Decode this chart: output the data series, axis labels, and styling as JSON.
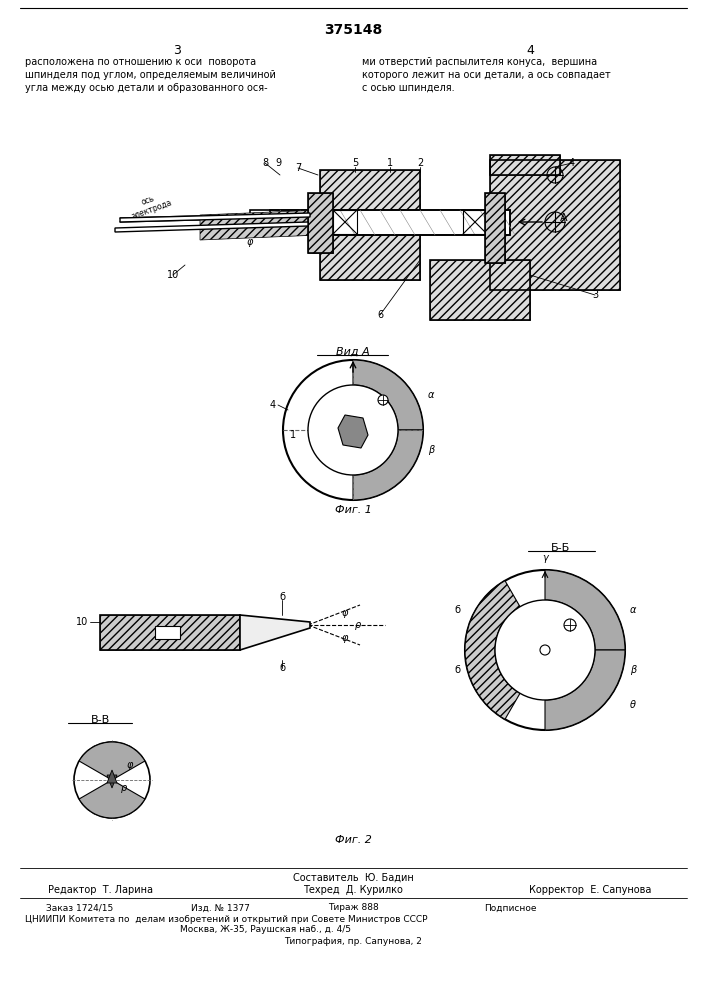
{
  "patent_number": "375148",
  "page_left": "3",
  "page_right": "4",
  "text_left": "расположена по отношению к оси  поворота\nшпинделя под углом, определяемым величиной\nугла между осью детали и образованного ося-",
  "text_right": "ми отверстий распылителя конуса,  вершина\nкоторого лежит на оси детали, а ось совпадает\nс осью шпинделя.",
  "fig1_label": "Фиг. 1",
  "fig2_label": "Фиг. 2",
  "vid_a_label": "Вид А",
  "bb_label": "Б-Б",
  "vv_label": "В-В",
  "footer_compiler": "Составитель  Ю. Бадин",
  "footer_editor": "Редактор  Т. Ларина",
  "footer_tech": "Техред  Д. Курилко",
  "footer_corrector": "Корректор  Е. Сапунова",
  "footer_order": "Заказ 1724/15",
  "footer_izd": "Изд. № 1377",
  "footer_tirazh": "Тираж 888",
  "footer_podpisnoe": "Подписное",
  "footer_cniip": "ЦНИИПИ Комитета по  делам изобретений и открытий при Совете Министров СССР",
  "footer_address": "Москва, Ж-35, Раушская наб., д. 4/5",
  "footer_tipografia": "Типография, пр. Сапунова, 2",
  "bg_color": "#ffffff",
  "line_color": "#000000",
  "text_color": "#000000",
  "fig_width": 7.07,
  "fig_height": 10.0,
  "dpi": 100
}
